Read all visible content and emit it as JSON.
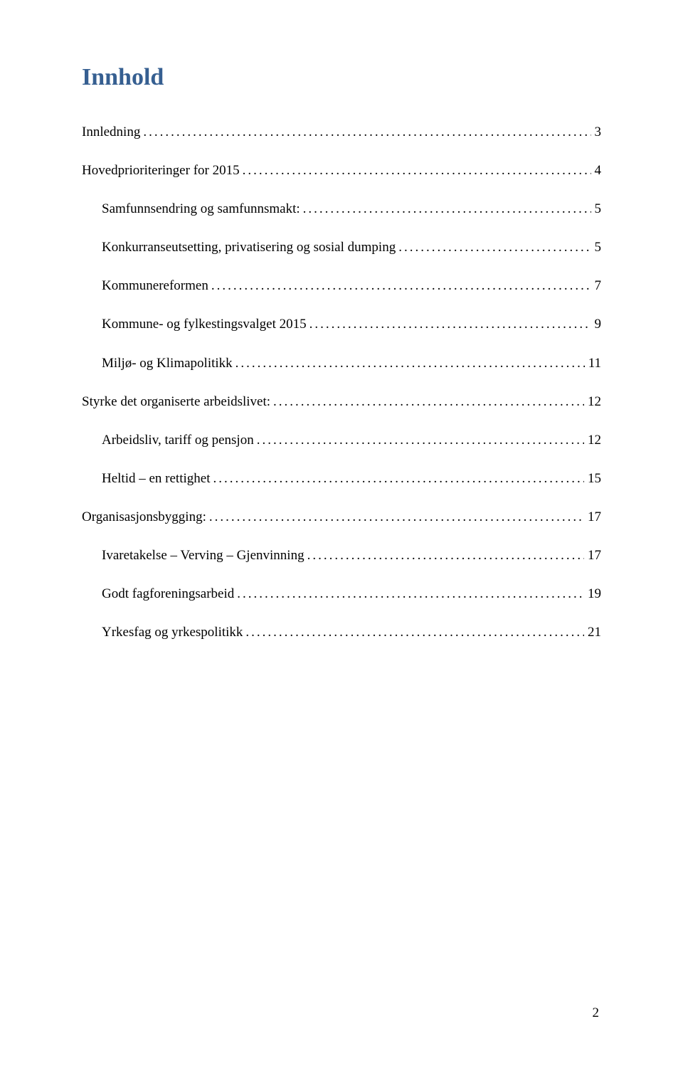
{
  "title": "Innhold",
  "title_color": "#365f91",
  "background_color": "#ffffff",
  "text_color": "#000000",
  "font_family": "Times New Roman",
  "font_size_title_pt": 26,
  "font_size_body_pt": 14,
  "toc": [
    {
      "label": "Innledning",
      "page": "3",
      "indent": 0
    },
    {
      "label": "Hovedprioriteringer for 2015",
      "page": "4",
      "indent": 0
    },
    {
      "label": "Samfunnsendring og samfunnsmakt:",
      "page": "5",
      "indent": 1
    },
    {
      "label": "Konkurranseutsetting, privatisering og sosial dumping",
      "page": "5",
      "indent": 1
    },
    {
      "label": "Kommunereformen",
      "page": "7",
      "indent": 1
    },
    {
      "label": "Kommune- og fylkestingsvalget 2015",
      "page": "9",
      "indent": 1
    },
    {
      "label": "Miljø- og Klimapolitikk",
      "page": "11",
      "indent": 1
    },
    {
      "label": "Styrke det organiserte arbeidslivet:",
      "page": "12",
      "indent": 0
    },
    {
      "label": "Arbeidsliv, tariff og pensjon",
      "page": "12",
      "indent": 1
    },
    {
      "label": "Heltid – en rettighet",
      "page": "15",
      "indent": 1
    },
    {
      "label": "Organisasjonsbygging:",
      "page": "17",
      "indent": 0
    },
    {
      "label": "Ivaretakelse – Verving – Gjenvinning",
      "page": "17",
      "indent": 1
    },
    {
      "label": "Godt fagforeningsarbeid",
      "page": "19",
      "indent": 1
    },
    {
      "label": "Yrkesfag og yrkespolitikk",
      "page": "21",
      "indent": 1
    }
  ],
  "page_number": "2"
}
